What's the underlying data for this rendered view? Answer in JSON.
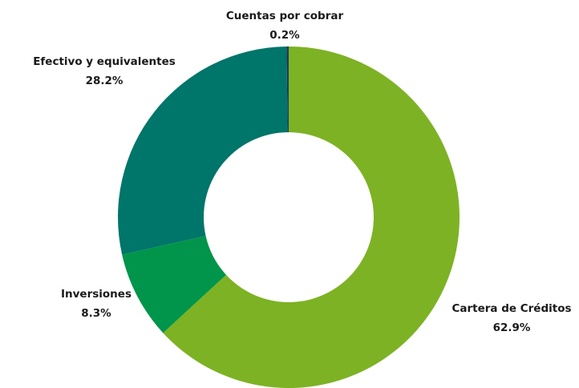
{
  "chart_data": {
    "type": "donut",
    "categories": [
      "Cartera de Créditos",
      "Inversiones",
      "Efectivo y equivalentes",
      "Cuentas por cobrar"
    ],
    "values": [
      62.9,
      8.3,
      28.2,
      0.2
    ],
    "value_labels": [
      "62.9%",
      "8.3%",
      "28.2%",
      "0.2%"
    ],
    "colors": [
      "#7db224",
      "#00954b",
      "#00756a",
      "#1b3b5e"
    ]
  }
}
